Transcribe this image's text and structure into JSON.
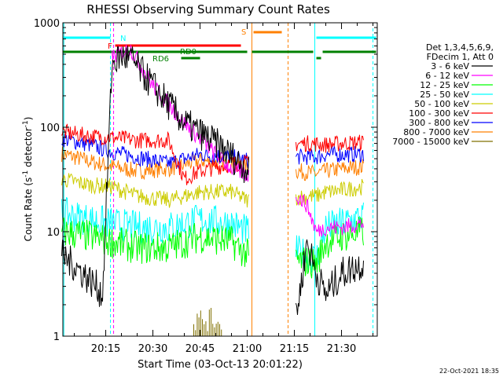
{
  "chart_data": {
    "type": "line",
    "title": "RHESSI Observing Summary Count Rates",
    "xlabel": "Start Time (03-Oct-13 20:01:22)",
    "ylabel": "Count Rate (s",
    "ylabel_sup1": "-1",
    "ylabel_mid": " detector",
    "ylabel_sup2": "-1",
    "ylabel_end": ")",
    "yscale": "log",
    "ylim": [
      1,
      1000
    ],
    "xlim": [
      "20:01:22",
      "21:41:22"
    ],
    "x_ticks": [
      "20:15",
      "20:30",
      "20:45",
      "21:00",
      "21:15",
      "21:30"
    ],
    "y_ticks": [
      "1",
      "10",
      "100",
      "1000"
    ],
    "grid": false,
    "legend_header": [
      "Det 1,3,4,5,6,9,",
      "FDecim 1, Att 0"
    ],
    "legend_position": "right",
    "timestamp": "22-Oct-2021 18:35",
    "series": [
      {
        "name": "3 - 6 keV",
        "color": "#000000",
        "x": [
          "20:01",
          "20:06",
          "20:12",
          "20:14",
          "20:17",
          "20:20",
          "20:23",
          "20:30",
          "20:40",
          "20:50",
          "21:00",
          "21:16",
          "21:19",
          "21:22",
          "21:25",
          "21:30",
          "21:37"
        ],
        "y": [
          6,
          4.5,
          3,
          2.5,
          400,
          480,
          450,
          250,
          110,
          70,
          40,
          1.8,
          8,
          4,
          2.5,
          4,
          5
        ]
      },
      {
        "name": "6 - 12 keV",
        "color": "#ff00ff",
        "x": [
          "20:17",
          "20:20",
          "20:23",
          "20:30",
          "20:40",
          "20:50",
          "20:55",
          "21:00",
          "21:16",
          "21:19",
          "21:22",
          "21:25",
          "21:30",
          "21:37"
        ],
        "y": [
          470,
          520,
          560,
          250,
          110,
          55,
          40,
          35,
          22,
          18,
          10,
          11,
          11,
          12
        ]
      },
      {
        "name": "12 - 25 keV",
        "color": "#00ff00",
        "x": [
          "20:01",
          "20:10",
          "20:17",
          "20:25",
          "20:35",
          "20:45",
          "20:55",
          "21:00",
          "21:22",
          "21:25",
          "21:30",
          "21:37"
        ],
        "y": [
          10,
          9,
          8,
          7,
          7,
          9,
          8,
          6,
          5,
          8,
          9,
          10
        ]
      },
      {
        "name": "25 - 50 keV",
        "color": "#00ffff",
        "x": [
          "20:01",
          "20:10",
          "20:17",
          "20:25",
          "20:35",
          "20:45",
          "20:55",
          "21:00",
          "21:22",
          "21:25",
          "21:30",
          "21:37"
        ],
        "y": [
          15,
          13,
          12,
          11,
          11,
          13,
          12,
          10,
          5.5,
          11,
          12,
          14
        ]
      },
      {
        "name": "50 - 100 keV",
        "color": "#cccc00",
        "x": [
          "20:01",
          "20:10",
          "20:17",
          "20:25",
          "20:35",
          "20:45",
          "20:55",
          "21:00",
          "21:22",
          "21:25",
          "21:30",
          "21:37"
        ],
        "y": [
          32,
          28,
          27,
          22,
          20,
          24,
          24,
          20,
          22,
          24,
          25,
          27
        ]
      },
      {
        "name": "100 - 300 keV",
        "color": "#ff0000",
        "x": [
          "20:01",
          "20:10",
          "20:17",
          "20:25",
          "20:35",
          "20:40",
          "20:45",
          "20:55",
          "21:00",
          "21:16",
          "21:20",
          "21:25",
          "21:30",
          "21:37"
        ],
        "y": [
          90,
          82,
          80,
          75,
          75,
          32,
          38,
          45,
          45,
          70,
          70,
          68,
          70,
          72
        ]
      },
      {
        "name": "300 - 800 keV",
        "color": "#0000ff",
        "x": [
          "20:01",
          "20:10",
          "20:17",
          "20:25",
          "20:35",
          "20:45",
          "20:55",
          "21:00",
          "21:16",
          "21:22",
          "21:25",
          "21:30",
          "21:37"
        ],
        "y": [
          78,
          68,
          58,
          52,
          45,
          55,
          52,
          48,
          52,
          52,
          55,
          55,
          55
        ]
      },
      {
        "name": "800 - 7000 keV",
        "color": "#ff8000",
        "x": [
          "20:01",
          "20:10",
          "20:17",
          "20:25",
          "20:35",
          "20:45",
          "20:55",
          "21:00",
          "21:16",
          "21:22",
          "21:25",
          "21:30",
          "21:37"
        ],
        "y": [
          56,
          47,
          42,
          38,
          40,
          48,
          44,
          42,
          38,
          36,
          38,
          40,
          42
        ]
      },
      {
        "name": "7000 - 15000 keV",
        "color": "#807000",
        "x": [
          "20:43",
          "20:46",
          "20:49",
          "20:52"
        ],
        "y": [
          2,
          2,
          2,
          2
        ]
      }
    ],
    "annotations": [
      {
        "label": "N",
        "color": "#00ffff"
      },
      {
        "label": "F",
        "color": "#ff0000"
      },
      {
        "label": "RD0",
        "color": "#008000"
      },
      {
        "label": "RD6",
        "color": "#008000"
      },
      {
        "label": "S",
        "color": "#ff8000"
      }
    ]
  }
}
